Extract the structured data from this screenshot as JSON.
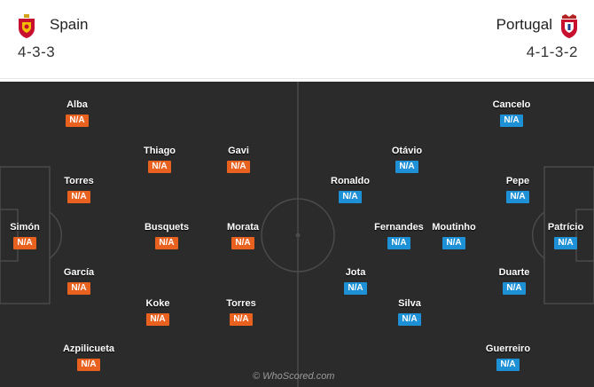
{
  "home": {
    "name": "Spain",
    "formation": "4-3-3",
    "players": [
      {
        "name": "Simón",
        "rating": "N/A"
      },
      {
        "name": "Alba",
        "rating": "N/A"
      },
      {
        "name": "Torres",
        "rating": "N/A"
      },
      {
        "name": "García",
        "rating": "N/A"
      },
      {
        "name": "Azpilicueta",
        "rating": "N/A"
      },
      {
        "name": "Thiago",
        "rating": "N/A"
      },
      {
        "name": "Busquets",
        "rating": "N/A"
      },
      {
        "name": "Koke",
        "rating": "N/A"
      },
      {
        "name": "Gavi",
        "rating": "N/A"
      },
      {
        "name": "Morata",
        "rating": "N/A"
      },
      {
        "name": "Torres",
        "rating": "N/A"
      }
    ]
  },
  "away": {
    "name": "Portugal",
    "formation": "4-1-3-2",
    "players": [
      {
        "name": "Patrício",
        "rating": "N/A"
      },
      {
        "name": "Cancelo",
        "rating": "N/A"
      },
      {
        "name": "Pepe",
        "rating": "N/A"
      },
      {
        "name": "Duarte",
        "rating": "N/A"
      },
      {
        "name": "Guerreiro",
        "rating": "N/A"
      },
      {
        "name": "Moutinho",
        "rating": "N/A"
      },
      {
        "name": "Otávio",
        "rating": "N/A"
      },
      {
        "name": "Fernandes",
        "rating": "N/A"
      },
      {
        "name": "Silva",
        "rating": "N/A"
      },
      {
        "name": "Ronaldo",
        "rating": "N/A"
      },
      {
        "name": "Jota",
        "rating": "N/A"
      }
    ]
  },
  "watermark": "© WhoScored.com",
  "colors": {
    "home_badge": "#e8611e",
    "away_badge": "#1e90d6",
    "pitch": "#2b2b2b"
  },
  "icons": {
    "home_crest": "spain-crest-icon",
    "away_crest": "portugal-crest-icon"
  }
}
